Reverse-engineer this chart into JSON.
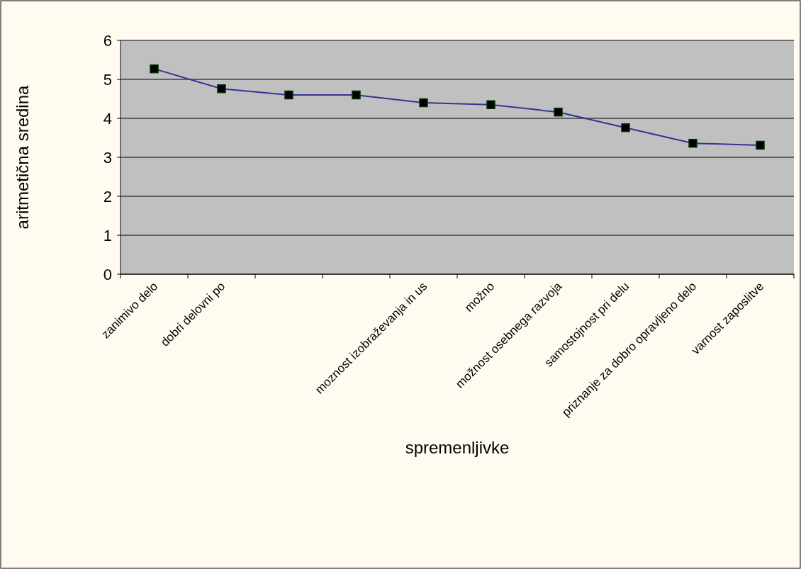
{
  "chart_data": {
    "type": "line",
    "xlabel": "spremenljivke",
    "ylabel": "aritmetična sredina",
    "categories": [
      "zanimivo delo",
      "dobri delovni po",
      null,
      null,
      "moznost izobraževanja in us",
      "možno",
      "možnost osebnega razvoja",
      "samostojnost pri delu",
      "priznanje za dobro opravljeno delo",
      "varnost zaposlitve"
    ],
    "series": [
      {
        "color": "#333399",
        "values": [
          5.27,
          4.76,
          4.6,
          4.6,
          4.4,
          4.35,
          4.16,
          3.76,
          3.36,
          3.31
        ]
      }
    ],
    "ylim": [
      0,
      6
    ],
    "yticks": [
      0,
      1,
      2,
      3,
      4,
      5,
      6
    ],
    "grid": "y",
    "marker": "square"
  }
}
